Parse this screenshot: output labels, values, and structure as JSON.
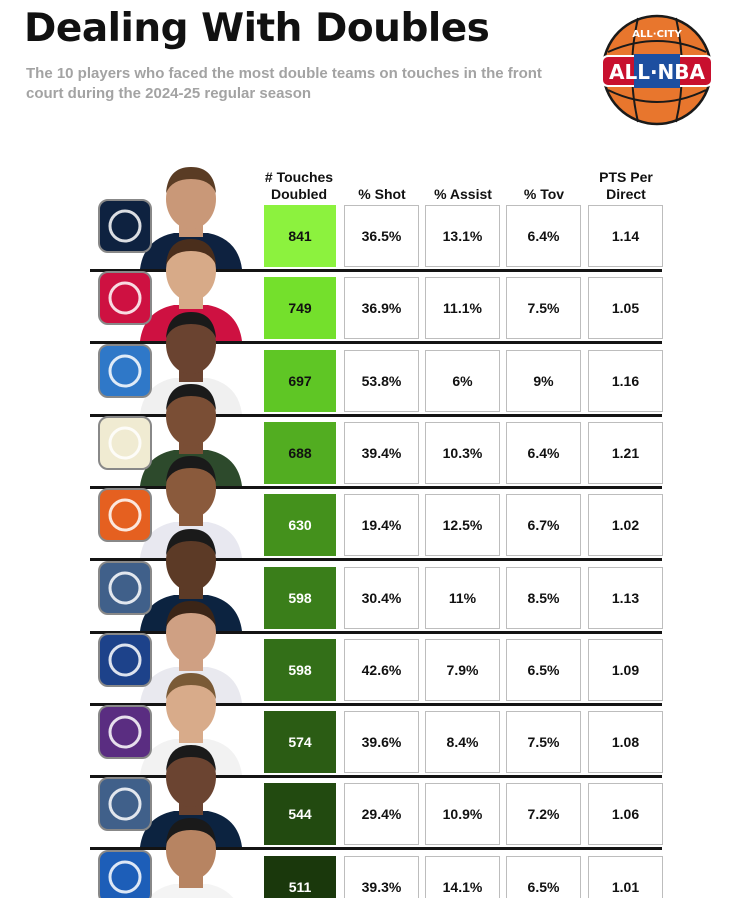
{
  "title": "Dealing With Doubles",
  "subtitle": "The 10 players who faced the most double teams on touches in the front court during the 2024-25 regular season",
  "logo": {
    "top_text": "ALL·CITY",
    "main_text": "ALL·NBA",
    "colors": {
      "ball": "#e8762d",
      "ribbon": "#c8102e",
      "band": "#1d4fa0"
    }
  },
  "chart_data": {
    "type": "table",
    "columns": [
      "# Touches Doubled",
      "% Shot",
      "% Assist",
      "% Tov",
      "PTS Per Direct"
    ],
    "rows": [
      {
        "team_icon": "nuggets-logo-icon",
        "touches": 841,
        "shot": "36.5%",
        "assist": "13.1%",
        "tov": "6.4%",
        "pts": "1.14"
      },
      {
        "team_icon": "rockets-logo-icon",
        "touches": 749,
        "shot": "36.9%",
        "assist": "11.1%",
        "tov": "7.5%",
        "pts": "1.05"
      },
      {
        "team_icon": "knicks-logo-icon",
        "touches": 697,
        "shot": "53.8%",
        "assist": "6%",
        "tov": "9%",
        "pts": "1.16"
      },
      {
        "team_icon": "bucks-logo-icon",
        "touches": 688,
        "shot": "39.4%",
        "assist": "10.3%",
        "tov": "6.4%",
        "pts": "1.21"
      },
      {
        "team_icon": "suns-logo-icon",
        "touches": 630,
        "shot": "19.4%",
        "assist": "12.5%",
        "tov": "6.7%",
        "pts": "1.02"
      },
      {
        "team_icon": "timberwolves-logo-icon",
        "touches": 598,
        "shot": "30.4%",
        "assist": "11%",
        "tov": "8.5%",
        "pts": "1.13"
      },
      {
        "team_icon": "clippers-logo-icon",
        "touches": 598,
        "shot": "42.6%",
        "assist": "7.9%",
        "tov": "6.5%",
        "pts": "1.09"
      },
      {
        "team_icon": "kings-logo-icon",
        "touches": 574,
        "shot": "39.6%",
        "assist": "8.4%",
        "tov": "7.5%",
        "pts": "1.08"
      },
      {
        "team_icon": "timberwolves-logo-icon",
        "touches": 544,
        "shot": "29.4%",
        "assist": "10.9%",
        "tov": "7.2%",
        "pts": "1.06"
      },
      {
        "team_icon": "pistons-logo-icon",
        "touches": 511,
        "shot": "39.3%",
        "assist": "14.1%",
        "tov": "6.5%",
        "pts": "1.01"
      }
    ],
    "touch_fill_colors": [
      "#8cf23e",
      "#74e02c",
      "#5fc625",
      "#52ad21",
      "#44911c",
      "#3a7e1a",
      "#336f18",
      "#2b5c14",
      "#224a10",
      "#1a380c"
    ],
    "team_colors": {
      "nuggets-logo-icon": "#0e2240",
      "rockets-logo-icon": "#ce1141",
      "knicks-logo-icon": "#2f78c8",
      "bucks-logo-icon": "#f0ebd2",
      "suns-logo-icon": "#e56020",
      "timberwolves-logo-icon": "#40608a",
      "clippers-logo-icon": "#1d428a",
      "kings-logo-icon": "#5a2d81",
      "pistons-logo-icon": "#1d5eb8"
    }
  }
}
